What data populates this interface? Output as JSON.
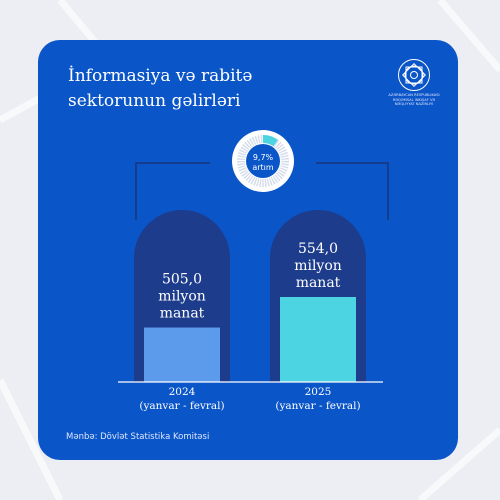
{
  "title_line1": "İnformasiya və rabitə",
  "title_line2": "sektorunun gəlirləri",
  "logo_text_line1": "Azərbaycan Respublikası",
  "logo_text_line2": "Rəqəmsal İnkişaf və",
  "logo_text_line3": "Nəqliyyat Nazirliyi",
  "source": "Mənbə: Dövlət Statistika Komitəsi",
  "colors": {
    "background": "#0a55c8",
    "pill": "#1d3c8c",
    "bar_2024": "#5c9aeb",
    "bar_2025": "#4cd4e3",
    "text": "#ffffff"
  },
  "chart_data": {
    "type": "bar",
    "categories": [
      "2024 (yanvar - fevral)",
      "2025 (yanvar - fevral)"
    ],
    "category_lines": [
      [
        "2024",
        "(yanvar - fevral)"
      ],
      [
        "2025",
        "(yanvar - fevral)"
      ]
    ],
    "values": [
      505.0,
      554.0
    ],
    "unit": "milyon manat",
    "labels": [
      [
        "505,0",
        "milyon",
        "manat"
      ],
      [
        "554,0",
        "milyon",
        "manat"
      ]
    ],
    "growth": {
      "percent": 9.7,
      "label_value": "9,7%",
      "label_text": "artım"
    }
  }
}
